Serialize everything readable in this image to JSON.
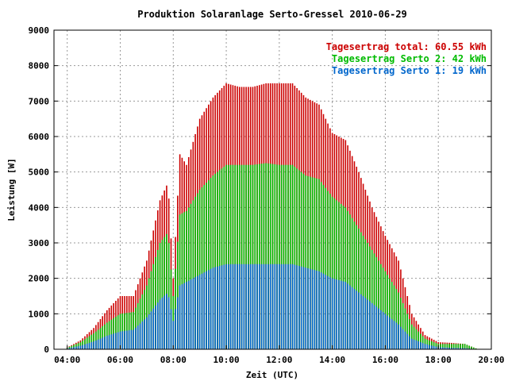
{
  "chart_data": {
    "type": "bar",
    "title": "Produktion Solaranlage Serto-Gressel 2010-06-29",
    "xlabel": "Zeit (UTC)",
    "ylabel": "Leistung [W]",
    "xlim": [
      3.5,
      20.0
    ],
    "ylim": [
      0,
      9000
    ],
    "x_ticks": [
      "04:00",
      "06:00",
      "08:00",
      "10:00",
      "12:00",
      "14:00",
      "16:00",
      "18:00",
      "20:00"
    ],
    "y_ticks": [
      "0",
      "1000",
      "2000",
      "3000",
      "4000",
      "5000",
      "6000",
      "7000",
      "8000",
      "9000"
    ],
    "grid": true,
    "legend_position": "top-right",
    "legend": [
      {
        "label": "Tagesertrag total: 60.55 kWh",
        "color": "#cc0000"
      },
      {
        "label": "Tagesertrag Serto 2: 42 kWh",
        "color": "#00bb00"
      },
      {
        "label": "Tagesertrag Serto 1: 19 kWh",
        "color": "#0066cc"
      }
    ],
    "series": [
      {
        "name": "Tagesertrag total: 60.55 kWh",
        "color": "#cc0000",
        "x": [
          4.0,
          4.5,
          5.0,
          5.5,
          6.0,
          6.5,
          7.0,
          7.5,
          7.8,
          8.0,
          8.25,
          8.5,
          9.0,
          9.5,
          10.0,
          10.5,
          11.0,
          11.5,
          12.0,
          12.5,
          13.0,
          13.5,
          14.0,
          14.5,
          15.0,
          15.5,
          16.0,
          16.5,
          17.0,
          17.5,
          18.0,
          18.5,
          19.0,
          19.5
        ],
        "values": [
          50,
          250,
          600,
          1100,
          1500,
          1500,
          2500,
          4200,
          4700,
          2000,
          5500,
          5200,
          6500,
          7100,
          7500,
          7400,
          7400,
          7500,
          7500,
          7500,
          7100,
          6900,
          6100,
          5900,
          5000,
          4000,
          3200,
          2500,
          1000,
          400,
          200,
          180,
          150,
          0
        ]
      },
      {
        "name": "Tagesertrag Serto 2: 42 kWh",
        "color": "#00bb00",
        "x": [
          4.0,
          4.5,
          5.0,
          5.5,
          6.0,
          6.5,
          7.0,
          7.5,
          7.8,
          8.0,
          8.25,
          8.5,
          9.0,
          9.5,
          10.0,
          10.5,
          11.0,
          11.5,
          12.0,
          12.5,
          13.0,
          13.5,
          14.0,
          14.5,
          15.0,
          15.5,
          16.0,
          16.5,
          17.0,
          17.5,
          18.0,
          18.5,
          19.0,
          19.5
        ],
        "values": [
          40,
          200,
          450,
          750,
          1000,
          1050,
          1800,
          3000,
          3300,
          1500,
          3800,
          3900,
          4500,
          4900,
          5200,
          5200,
          5200,
          5250,
          5200,
          5200,
          4900,
          4800,
          4300,
          4000,
          3400,
          2800,
          2200,
          1600,
          700,
          300,
          150,
          150,
          150,
          0
        ]
      },
      {
        "name": "Tagesertrag Serto 1: 19 kWh",
        "color": "#0066cc",
        "x": [
          4.0,
          4.5,
          5.0,
          5.5,
          6.0,
          6.5,
          7.0,
          7.5,
          7.8,
          8.0,
          8.25,
          8.5,
          9.0,
          9.5,
          10.0,
          10.5,
          11.0,
          11.5,
          12.0,
          12.5,
          13.0,
          13.5,
          14.0,
          14.5,
          15.0,
          15.5,
          16.0,
          16.5,
          17.0,
          17.5,
          18.0,
          18.5,
          19.0,
          19.5
        ],
        "values": [
          20,
          100,
          220,
          380,
          500,
          550,
          900,
          1400,
          1600,
          800,
          1800,
          1900,
          2100,
          2300,
          2400,
          2400,
          2400,
          2400,
          2400,
          2400,
          2300,
          2200,
          2000,
          1900,
          1600,
          1300,
          1000,
          700,
          300,
          150,
          60,
          40,
          30,
          0
        ]
      }
    ]
  }
}
